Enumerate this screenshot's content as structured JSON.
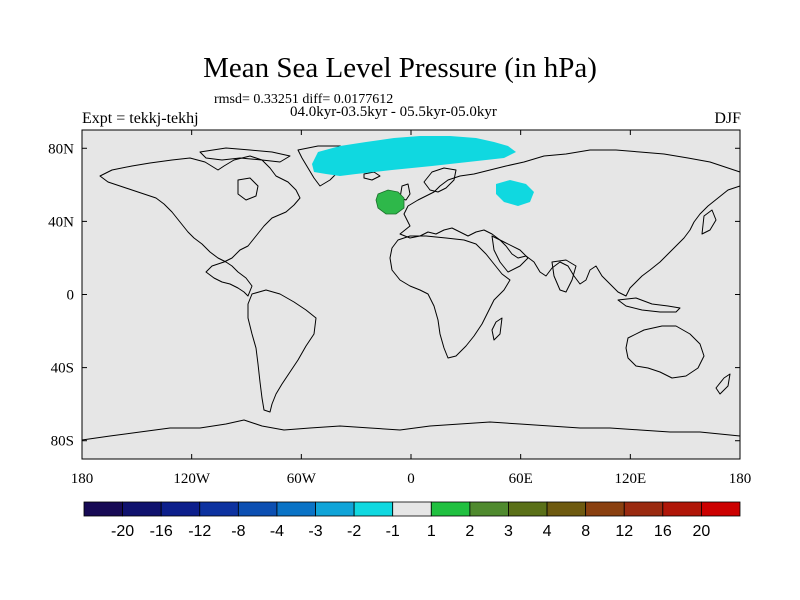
{
  "map": {
    "title": "Mean Sea Level Pressure (in hPa)",
    "stats_line": "rmsd= 0.33251 diff= 0.0177612",
    "period_line": "04.0kyr-03.5kyr - 05.5kyr-05.0kyr",
    "experiment": "Expt = tekkj-tekhj",
    "season": "DJF",
    "projection": "cylindrical equidistant",
    "lon_range": [
      -180,
      180
    ],
    "lat_range": [
      -90,
      90
    ],
    "lon_ticks": [
      "180",
      "120W",
      "60W",
      "0",
      "60E",
      "120E",
      "180"
    ],
    "lat_ticks": [
      "80N",
      "40N",
      "0",
      "40S",
      "80S"
    ],
    "ocean_color": "#e6e6e6",
    "anomaly_regions": [
      {
        "name": "Arctic / Greenland-Barents negative anomaly",
        "class": "-2 to -1",
        "color": "#10d8e0"
      },
      {
        "name": "Northeast Atlantic off Europe positive anomaly",
        "class": "1 to 2",
        "color": "#2eb84a"
      },
      {
        "name": "Caspian region negative anomaly",
        "class": "-2 to -1",
        "color": "#10d8e0"
      }
    ]
  },
  "colorbar": {
    "labels": [
      "-20",
      "-16",
      "-12",
      "-8",
      "-4",
      "-3",
      "-2",
      "-1",
      "1",
      "2",
      "3",
      "4",
      "8",
      "12",
      "16",
      "20"
    ],
    "colors": [
      "#170a55",
      "#10126e",
      "#0d1f8c",
      "#0d32a0",
      "#0c4fb2",
      "#0a73c6",
      "#10a4d8",
      "#10d8e0",
      "#e6e6e6",
      "#20c040",
      "#4f8a2e",
      "#5a7018",
      "#6e5a10",
      "#8a4010",
      "#9a2a10",
      "#b01608",
      "#cc0000"
    ]
  }
}
